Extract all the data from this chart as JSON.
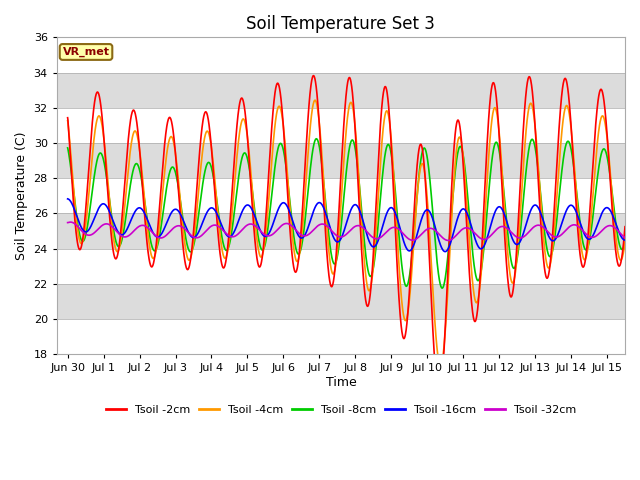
{
  "title": "Soil Temperature Set 3",
  "xlabel": "Time",
  "ylabel": "Soil Temperature (C)",
  "ylim": [
    18,
    36
  ],
  "yticks": [
    18,
    20,
    22,
    24,
    26,
    28,
    30,
    32,
    34,
    36
  ],
  "plot_bg_color": "#ffffff",
  "fig_bg_color": "#ffffff",
  "annotation_text": "VR_met",
  "annotation_bg": "#ffffaa",
  "annotation_border": "#8b6914",
  "colors": {
    "2cm": "#ff0000",
    "4cm": "#ff9900",
    "8cm": "#00cc00",
    "16cm": "#0000ff",
    "32cm": "#cc00cc"
  },
  "legend_labels": [
    "Tsoil -2cm",
    "Tsoil -4cm",
    "Tsoil -8cm",
    "Tsoil -16cm",
    "Tsoil -32cm"
  ],
  "band_colors": [
    "#ffffff",
    "#dcdcdc"
  ],
  "n_days": 15.5,
  "pts_per_day": 144
}
